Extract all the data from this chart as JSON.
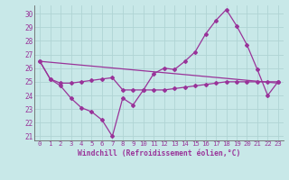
{
  "xlabel": "Windchill (Refroidissement éolien,°C)",
  "background_color": "#c8e8e8",
  "grid_color": "#aacccc",
  "line_color": "#993399",
  "xlim": [
    -0.5,
    23.5
  ],
  "ylim": [
    20.7,
    30.6
  ],
  "yticks": [
    21,
    22,
    23,
    24,
    25,
    26,
    27,
    28,
    29,
    30
  ],
  "xticks": [
    0,
    1,
    2,
    3,
    4,
    5,
    6,
    7,
    8,
    9,
    10,
    11,
    12,
    13,
    14,
    15,
    16,
    17,
    18,
    19,
    20,
    21,
    22,
    23
  ],
  "series1_x": [
    0,
    1,
    2,
    3,
    4,
    5,
    6,
    7,
    8,
    9,
    10,
    11,
    12,
    13,
    14,
    15,
    16,
    17,
    18,
    19,
    20,
    21,
    22,
    23
  ],
  "series1_y": [
    26.5,
    25.2,
    24.7,
    23.8,
    23.1,
    22.8,
    22.2,
    21.0,
    23.8,
    23.3,
    24.4,
    25.6,
    26.0,
    25.9,
    26.5,
    27.2,
    28.5,
    29.5,
    30.3,
    29.1,
    27.7,
    25.9,
    24.0,
    25.0
  ],
  "series2_x": [
    0,
    1,
    2,
    3,
    4,
    5,
    6,
    7,
    8,
    9,
    10,
    11,
    12,
    13,
    14,
    15,
    16,
    17,
    18,
    19,
    20,
    21,
    22,
    23
  ],
  "series2_y": [
    26.5,
    25.2,
    24.9,
    24.9,
    25.0,
    25.1,
    25.2,
    25.3,
    24.4,
    24.4,
    24.4,
    24.4,
    24.4,
    24.5,
    24.6,
    24.7,
    24.8,
    24.9,
    25.0,
    25.0,
    25.0,
    25.0,
    25.0,
    25.0
  ],
  "series3_x": [
    0,
    23
  ],
  "series3_y": [
    26.5,
    24.9
  ]
}
